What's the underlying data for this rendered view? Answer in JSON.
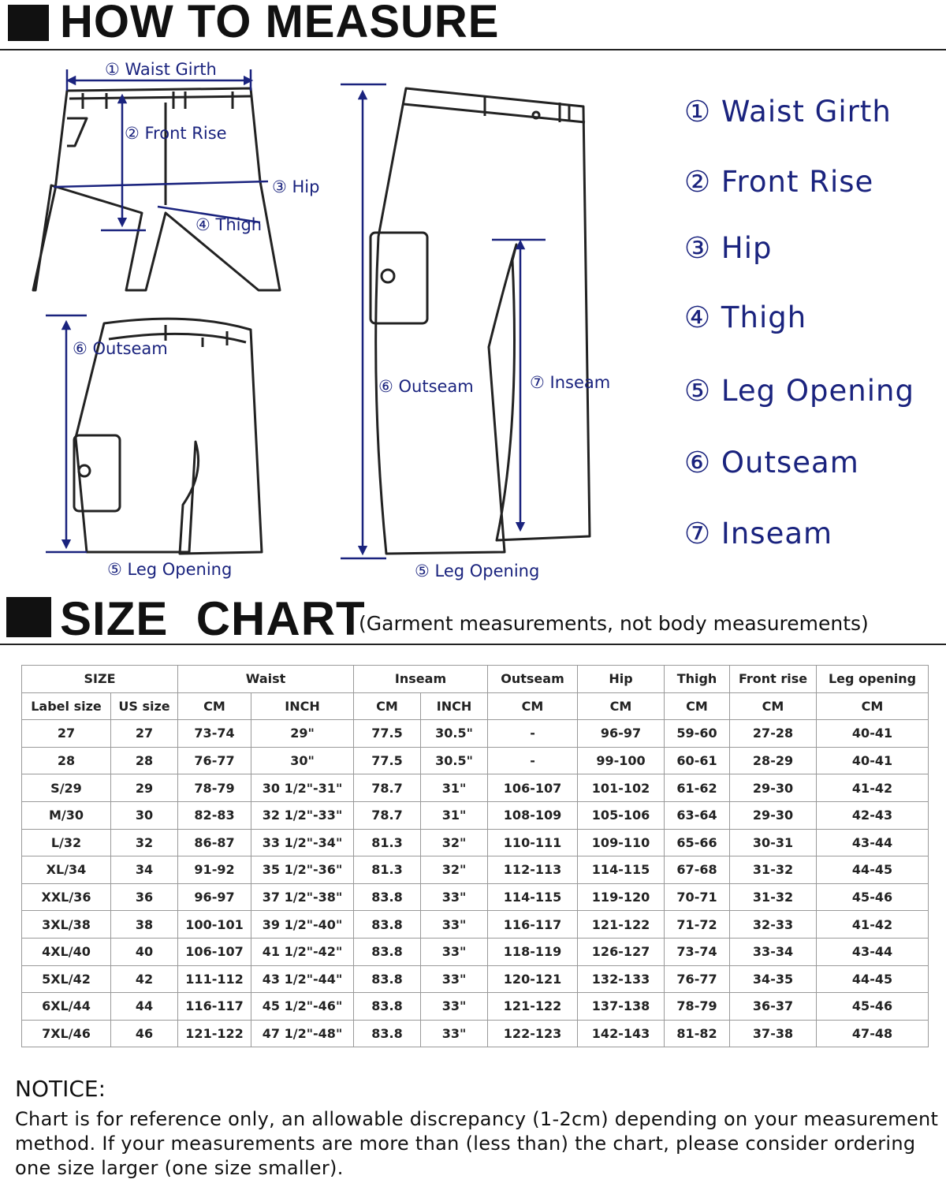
{
  "how_to_measure": {
    "title": "HOW TO MEASURE",
    "front_diagram": {
      "waist_girth": "① Waist Girth",
      "front_rise": "② Front Rise",
      "hip": "③ Hip",
      "thigh": "④ Thigh"
    },
    "shorts_diagram": {
      "outseam": "⑥ Outseam",
      "leg_opening": "⑤ Leg Opening"
    },
    "pants_diagram": {
      "outseam": "⑥ Outseam",
      "inseam": "⑦ Inseam",
      "leg_opening": "⑤ Leg Opening"
    },
    "legend": [
      "① Waist Girth",
      "② Front Rise",
      "③ Hip",
      "④ Thigh",
      "⑤ Leg Opening",
      "⑥ Outseam",
      "⑦ Inseam"
    ]
  },
  "size_chart": {
    "title": "SIZE  CHART",
    "subtitle": "(Garment measurements, not body measurements)",
    "table": {
      "groups": [
        "SIZE",
        "Waist",
        "Inseam",
        "Outseam",
        "Hip",
        "Thigh",
        "Front rise",
        "Leg opening"
      ],
      "columns": [
        "Label size",
        "US size",
        "CM",
        "INCH",
        "CM",
        "INCH",
        "CM",
        "CM",
        "CM",
        "CM",
        "CM"
      ],
      "rows": [
        [
          "27",
          "27",
          "73-74",
          "29\"",
          "77.5",
          "30.5\"",
          "-",
          "96-97",
          "59-60",
          "27-28",
          "40-41"
        ],
        [
          "28",
          "28",
          "76-77",
          "30\"",
          "77.5",
          "30.5\"",
          "-",
          "99-100",
          "60-61",
          "28-29",
          "40-41"
        ],
        [
          "S/29",
          "29",
          "78-79",
          "30 1/2\"-31\"",
          "78.7",
          "31\"",
          "106-107",
          "101-102",
          "61-62",
          "29-30",
          "41-42"
        ],
        [
          "M/30",
          "30",
          "82-83",
          "32 1/2\"-33\"",
          "78.7",
          "31\"",
          "108-109",
          "105-106",
          "63-64",
          "29-30",
          "42-43"
        ],
        [
          "L/32",
          "32",
          "86-87",
          "33 1/2\"-34\"",
          "81.3",
          "32\"",
          "110-111",
          "109-110",
          "65-66",
          "30-31",
          "43-44"
        ],
        [
          "XL/34",
          "34",
          "91-92",
          "35 1/2\"-36\"",
          "81.3",
          "32\"",
          "112-113",
          "114-115",
          "67-68",
          "31-32",
          "44-45"
        ],
        [
          "XXL/36",
          "36",
          "96-97",
          "37 1/2\"-38\"",
          "83.8",
          "33\"",
          "114-115",
          "119-120",
          "70-71",
          "31-32",
          "45-46"
        ],
        [
          "3XL/38",
          "38",
          "100-101",
          "39 1/2\"-40\"",
          "83.8",
          "33\"",
          "116-117",
          "121-122",
          "71-72",
          "32-33",
          "41-42"
        ],
        [
          "4XL/40",
          "40",
          "106-107",
          "41 1/2\"-42\"",
          "83.8",
          "33\"",
          "118-119",
          "126-127",
          "73-74",
          "33-34",
          "43-44"
        ],
        [
          "5XL/42",
          "42",
          "111-112",
          "43 1/2\"-44\"",
          "83.8",
          "33\"",
          "120-121",
          "132-133",
          "76-77",
          "34-35",
          "44-45"
        ],
        [
          "6XL/44",
          "44",
          "116-117",
          "45 1/2\"-46\"",
          "83.8",
          "33\"",
          "121-122",
          "137-138",
          "78-79",
          "36-37",
          "45-46"
        ],
        [
          "7XL/46",
          "46",
          "121-122",
          "47 1/2\"-48\"",
          "83.8",
          "33\"",
          "122-123",
          "142-143",
          "81-82",
          "37-38",
          "47-48"
        ]
      ]
    }
  },
  "notice": {
    "title": "NOTICE:",
    "text": "Chart is for reference only, an allowable discrepancy (1-2cm) depending on your measurement method. If your measurements are more than (less than) the chart, please consider ordering one size larger (one size smaller)."
  }
}
